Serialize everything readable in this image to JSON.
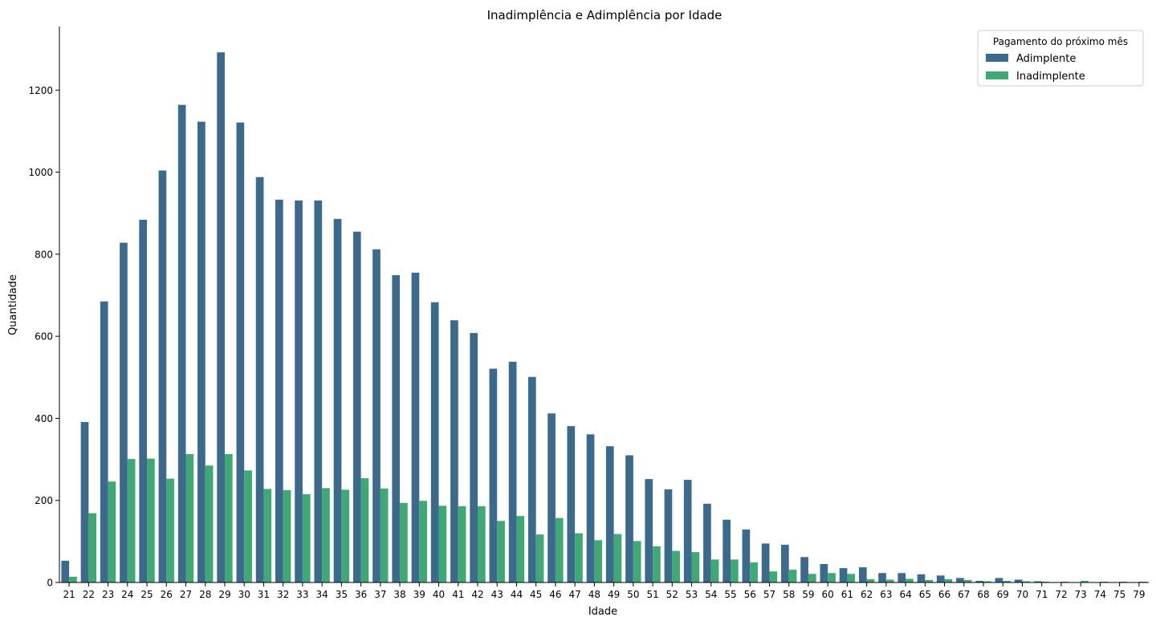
{
  "chart_data": {
    "type": "bar",
    "title": "Inadimplência e Adimplência por Idade",
    "xlabel": "Idade",
    "ylabel": "Quantidade",
    "ylim": [
      0,
      1355
    ],
    "yticks": [
      0,
      200,
      400,
      600,
      800,
      1000,
      1200
    ],
    "grid": false,
    "legend": {
      "title": "Pagamento do próximo mês",
      "placement": "top-right"
    },
    "categories": [
      "21",
      "22",
      "23",
      "24",
      "25",
      "26",
      "27",
      "28",
      "29",
      "30",
      "31",
      "32",
      "33",
      "34",
      "35",
      "36",
      "37",
      "38",
      "39",
      "40",
      "41",
      "42",
      "43",
      "44",
      "45",
      "46",
      "47",
      "48",
      "49",
      "50",
      "51",
      "52",
      "53",
      "54",
      "55",
      "56",
      "57",
      "58",
      "59",
      "60",
      "61",
      "62",
      "63",
      "64",
      "65",
      "66",
      "67",
      "68",
      "69",
      "70",
      "71",
      "72",
      "73",
      "74",
      "75",
      "79"
    ],
    "series": [
      {
        "name": "Adimplente",
        "color": "#3b6a8c",
        "values": [
          53,
          391,
          685,
          828,
          884,
          1004,
          1164,
          1123,
          1292,
          1121,
          988,
          933,
          931,
          931,
          886,
          855,
          812,
          749,
          755,
          683,
          639,
          608,
          521,
          538,
          501,
          412,
          381,
          361,
          332,
          310,
          252,
          227,
          250,
          192,
          153,
          129,
          95,
          92,
          62,
          45,
          35,
          37,
          23,
          23,
          20,
          17,
          11,
          4,
          11,
          7,
          3,
          1,
          1,
          1,
          1,
          1
        ]
      },
      {
        "name": "Inadimplente",
        "color": "#40a874",
        "values": [
          14,
          169,
          246,
          301,
          302,
          253,
          313,
          285,
          313,
          273,
          228,
          225,
          215,
          230,
          226,
          254,
          229,
          194,
          199,
          187,
          186,
          186,
          150,
          162,
          117,
          157,
          120,
          103,
          118,
          101,
          88,
          77,
          74,
          56,
          56,
          49,
          27,
          31,
          21,
          23,
          21,
          8,
          7,
          9,
          6,
          8,
          6,
          3,
          4,
          3,
          2,
          2,
          4,
          2,
          2,
          2
        ]
      }
    ]
  }
}
